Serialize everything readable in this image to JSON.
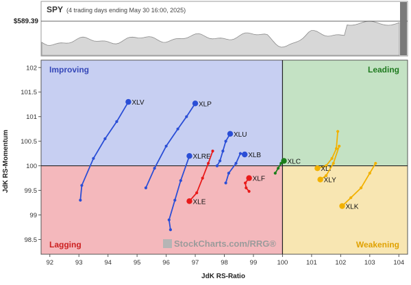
{
  "header": {
    "symbol": "SPY",
    "subtitle": "(4 trading days ending May 30 16:00, 2025)",
    "price_label": "$589.39"
  },
  "colors": {
    "improving": "#c7cff2",
    "leading": "#c4e2c4",
    "lagging": "#f4b8bc",
    "weakening": "#f8e6b2",
    "improving_label": "#3547b8",
    "leading_label": "#1f7a1f",
    "lagging_label": "#cc1f1f",
    "weakening_label": "#e0a100"
  },
  "chart_data": {
    "type": "scatter",
    "title": "",
    "xlabel": "JdK RS-Ratio",
    "ylabel": "JdK RS-Momentum",
    "xlim": [
      91.7,
      104.3
    ],
    "ylim": [
      98.2,
      102.15
    ],
    "x_ticks": [
      "92",
      "93",
      "94",
      "95",
      "96",
      "97",
      "98",
      "99",
      "100",
      "101",
      "102",
      "103",
      "104"
    ],
    "y_ticks": [
      "102",
      "101.5",
      "101",
      "100.5",
      "100",
      "99.5",
      "99",
      "98.5"
    ],
    "quadrants": {
      "improving": "Improving",
      "leading": "Leading",
      "lagging": "Lagging",
      "weakening": "Weakening"
    },
    "center": [
      100,
      100
    ],
    "watermark": "StockCharts.com/RRG®",
    "series": [
      {
        "name": "XLV",
        "color": "#2a4ed6",
        "points": [
          [
            93.05,
            99.3
          ],
          [
            93.1,
            99.6
          ],
          [
            93.5,
            100.15
          ],
          [
            93.9,
            100.55
          ],
          [
            94.3,
            100.9
          ],
          [
            94.7,
            101.3
          ]
        ]
      },
      {
        "name": "XLP",
        "color": "#2a4ed6",
        "points": [
          [
            95.3,
            99.55
          ],
          [
            95.6,
            99.95
          ],
          [
            96.0,
            100.4
          ],
          [
            96.4,
            100.75
          ],
          [
            96.7,
            101.0
          ],
          [
            97.0,
            101.27
          ]
        ]
      },
      {
        "name": "XLU",
        "color": "#2a4ed6",
        "points": [
          [
            97.75,
            100.0
          ],
          [
            97.85,
            100.1
          ],
          [
            97.95,
            100.3
          ],
          [
            98.05,
            100.5
          ],
          [
            98.2,
            100.65
          ]
        ]
      },
      {
        "name": "XLRE",
        "color": "#2a4ed6",
        "points": [
          [
            96.15,
            98.7
          ],
          [
            96.1,
            98.9
          ],
          [
            96.3,
            99.3
          ],
          [
            96.5,
            99.7
          ],
          [
            96.8,
            100.2
          ]
        ]
      },
      {
        "name": "XLB",
        "color": "#2a4ed6",
        "points": [
          [
            98.05,
            99.65
          ],
          [
            98.15,
            99.85
          ],
          [
            98.4,
            100.05
          ],
          [
            98.55,
            100.25
          ],
          [
            98.7,
            100.23
          ]
        ]
      },
      {
        "name": "XLE",
        "color": "#e81a1a",
        "points": [
          [
            97.6,
            100.3
          ],
          [
            97.45,
            100.05
          ],
          [
            97.25,
            99.75
          ],
          [
            97.05,
            99.45
          ],
          [
            96.8,
            99.28
          ]
        ]
      },
      {
        "name": "XLF",
        "color": "#e81a1a",
        "points": [
          [
            98.85,
            99.48
          ],
          [
            98.75,
            99.55
          ],
          [
            98.72,
            99.65
          ],
          [
            98.85,
            99.75
          ]
        ]
      },
      {
        "name": "XLC",
        "color": "#1a7d1a",
        "points": [
          [
            99.75,
            99.85
          ],
          [
            99.85,
            99.95
          ],
          [
            99.95,
            100.05
          ],
          [
            100.05,
            100.1
          ]
        ]
      },
      {
        "name": "XLI",
        "color": "#f2b100",
        "points": [
          [
            101.9,
            100.7
          ],
          [
            101.85,
            100.35
          ],
          [
            101.7,
            100.15
          ],
          [
            101.5,
            100.0
          ],
          [
            101.2,
            99.95
          ]
        ]
      },
      {
        "name": "XLY",
        "color": "#f2b100",
        "points": [
          [
            101.95,
            100.4
          ],
          [
            101.75,
            100.05
          ],
          [
            101.5,
            99.8
          ],
          [
            101.3,
            99.72
          ]
        ]
      },
      {
        "name": "XLK",
        "color": "#f2b100",
        "points": [
          [
            103.2,
            100.05
          ],
          [
            103.0,
            99.85
          ],
          [
            102.7,
            99.55
          ],
          [
            102.35,
            99.35
          ],
          [
            102.05,
            99.18
          ]
        ]
      }
    ]
  }
}
